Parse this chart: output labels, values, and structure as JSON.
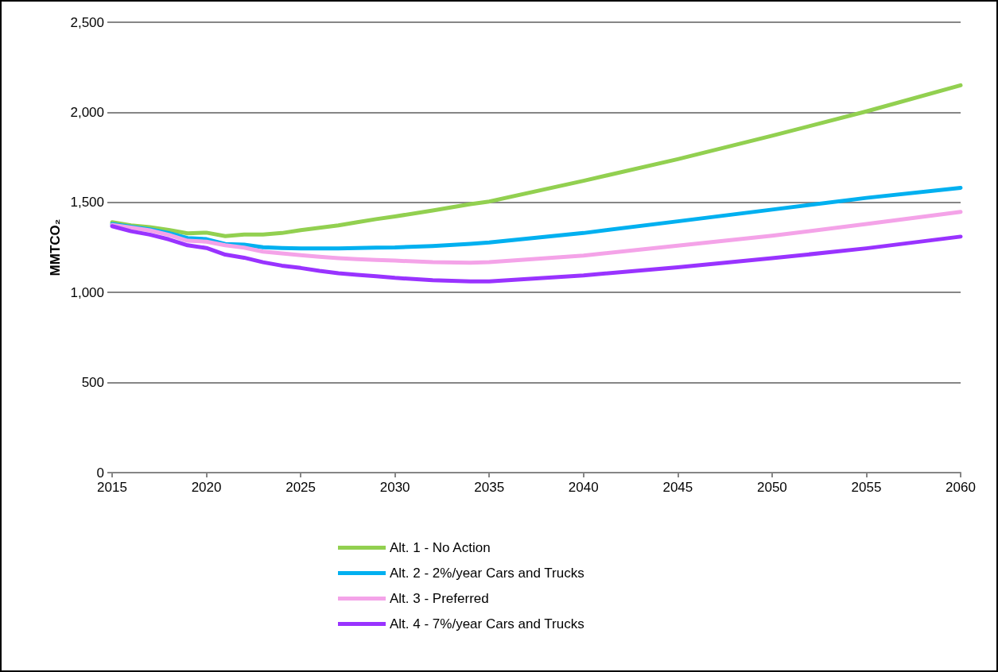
{
  "chart_data": {
    "type": "line",
    "ylabel": "MMTCO₂",
    "x": [
      2015,
      2016,
      2017,
      2018,
      2019,
      2020,
      2021,
      2022,
      2023,
      2024,
      2025,
      2026,
      2027,
      2028,
      2029,
      2030,
      2032,
      2034,
      2035,
      2040,
      2045,
      2050,
      2055,
      2060
    ],
    "series": [
      {
        "name": "Alt. 1 - No Action",
        "color": "#92d050",
        "values": [
          1390,
          1372,
          1362,
          1347,
          1328,
          1332,
          1313,
          1322,
          1322,
          1330,
          1346,
          1359,
          1372,
          1390,
          1407,
          1422,
          1455,
          1490,
          1505,
          1620,
          1740,
          1870,
          2005,
          2150
        ]
      },
      {
        "name": "Alt. 2 - 2%/year Cars and Trucks",
        "color": "#00b0f0",
        "values": [
          1380,
          1365,
          1350,
          1330,
          1302,
          1296,
          1269,
          1265,
          1251,
          1247,
          1245,
          1244,
          1245,
          1247,
          1249,
          1250,
          1258,
          1270,
          1278,
          1330,
          1395,
          1460,
          1525,
          1581
        ]
      },
      {
        "name": "Alt. 3 - Preferred",
        "color": "#f4a3e8",
        "values": [
          1375,
          1360,
          1345,
          1320,
          1287,
          1282,
          1262,
          1249,
          1227,
          1217,
          1207,
          1198,
          1191,
          1185,
          1181,
          1177,
          1168,
          1165,
          1168,
          1205,
          1260,
          1315,
          1380,
          1447
        ]
      },
      {
        "name": "Alt. 4 - 7%/year Cars and Trucks",
        "color": "#9933ff",
        "values": [
          1368,
          1340,
          1321,
          1295,
          1262,
          1247,
          1210,
          1193,
          1168,
          1149,
          1136,
          1120,
          1107,
          1098,
          1090,
          1081,
          1068,
          1062,
          1062,
          1095,
          1140,
          1190,
          1245,
          1310
        ]
      }
    ],
    "xlim": [
      2015,
      2060
    ],
    "xticks": [
      2015,
      2020,
      2025,
      2030,
      2035,
      2040,
      2045,
      2050,
      2055,
      2060
    ],
    "ylim": [
      0,
      2500
    ],
    "yticks": [
      0,
      500,
      {
        "value": 1000,
        "label": "1,000"
      },
      {
        "value": 1500,
        "label": "1,500"
      },
      {
        "value": 2000,
        "label": "2,000"
      },
      {
        "value": 2500,
        "label": "2,500"
      }
    ],
    "grid": "y",
    "legend": "bottom",
    "marker": "none",
    "line_style": "solid"
  }
}
